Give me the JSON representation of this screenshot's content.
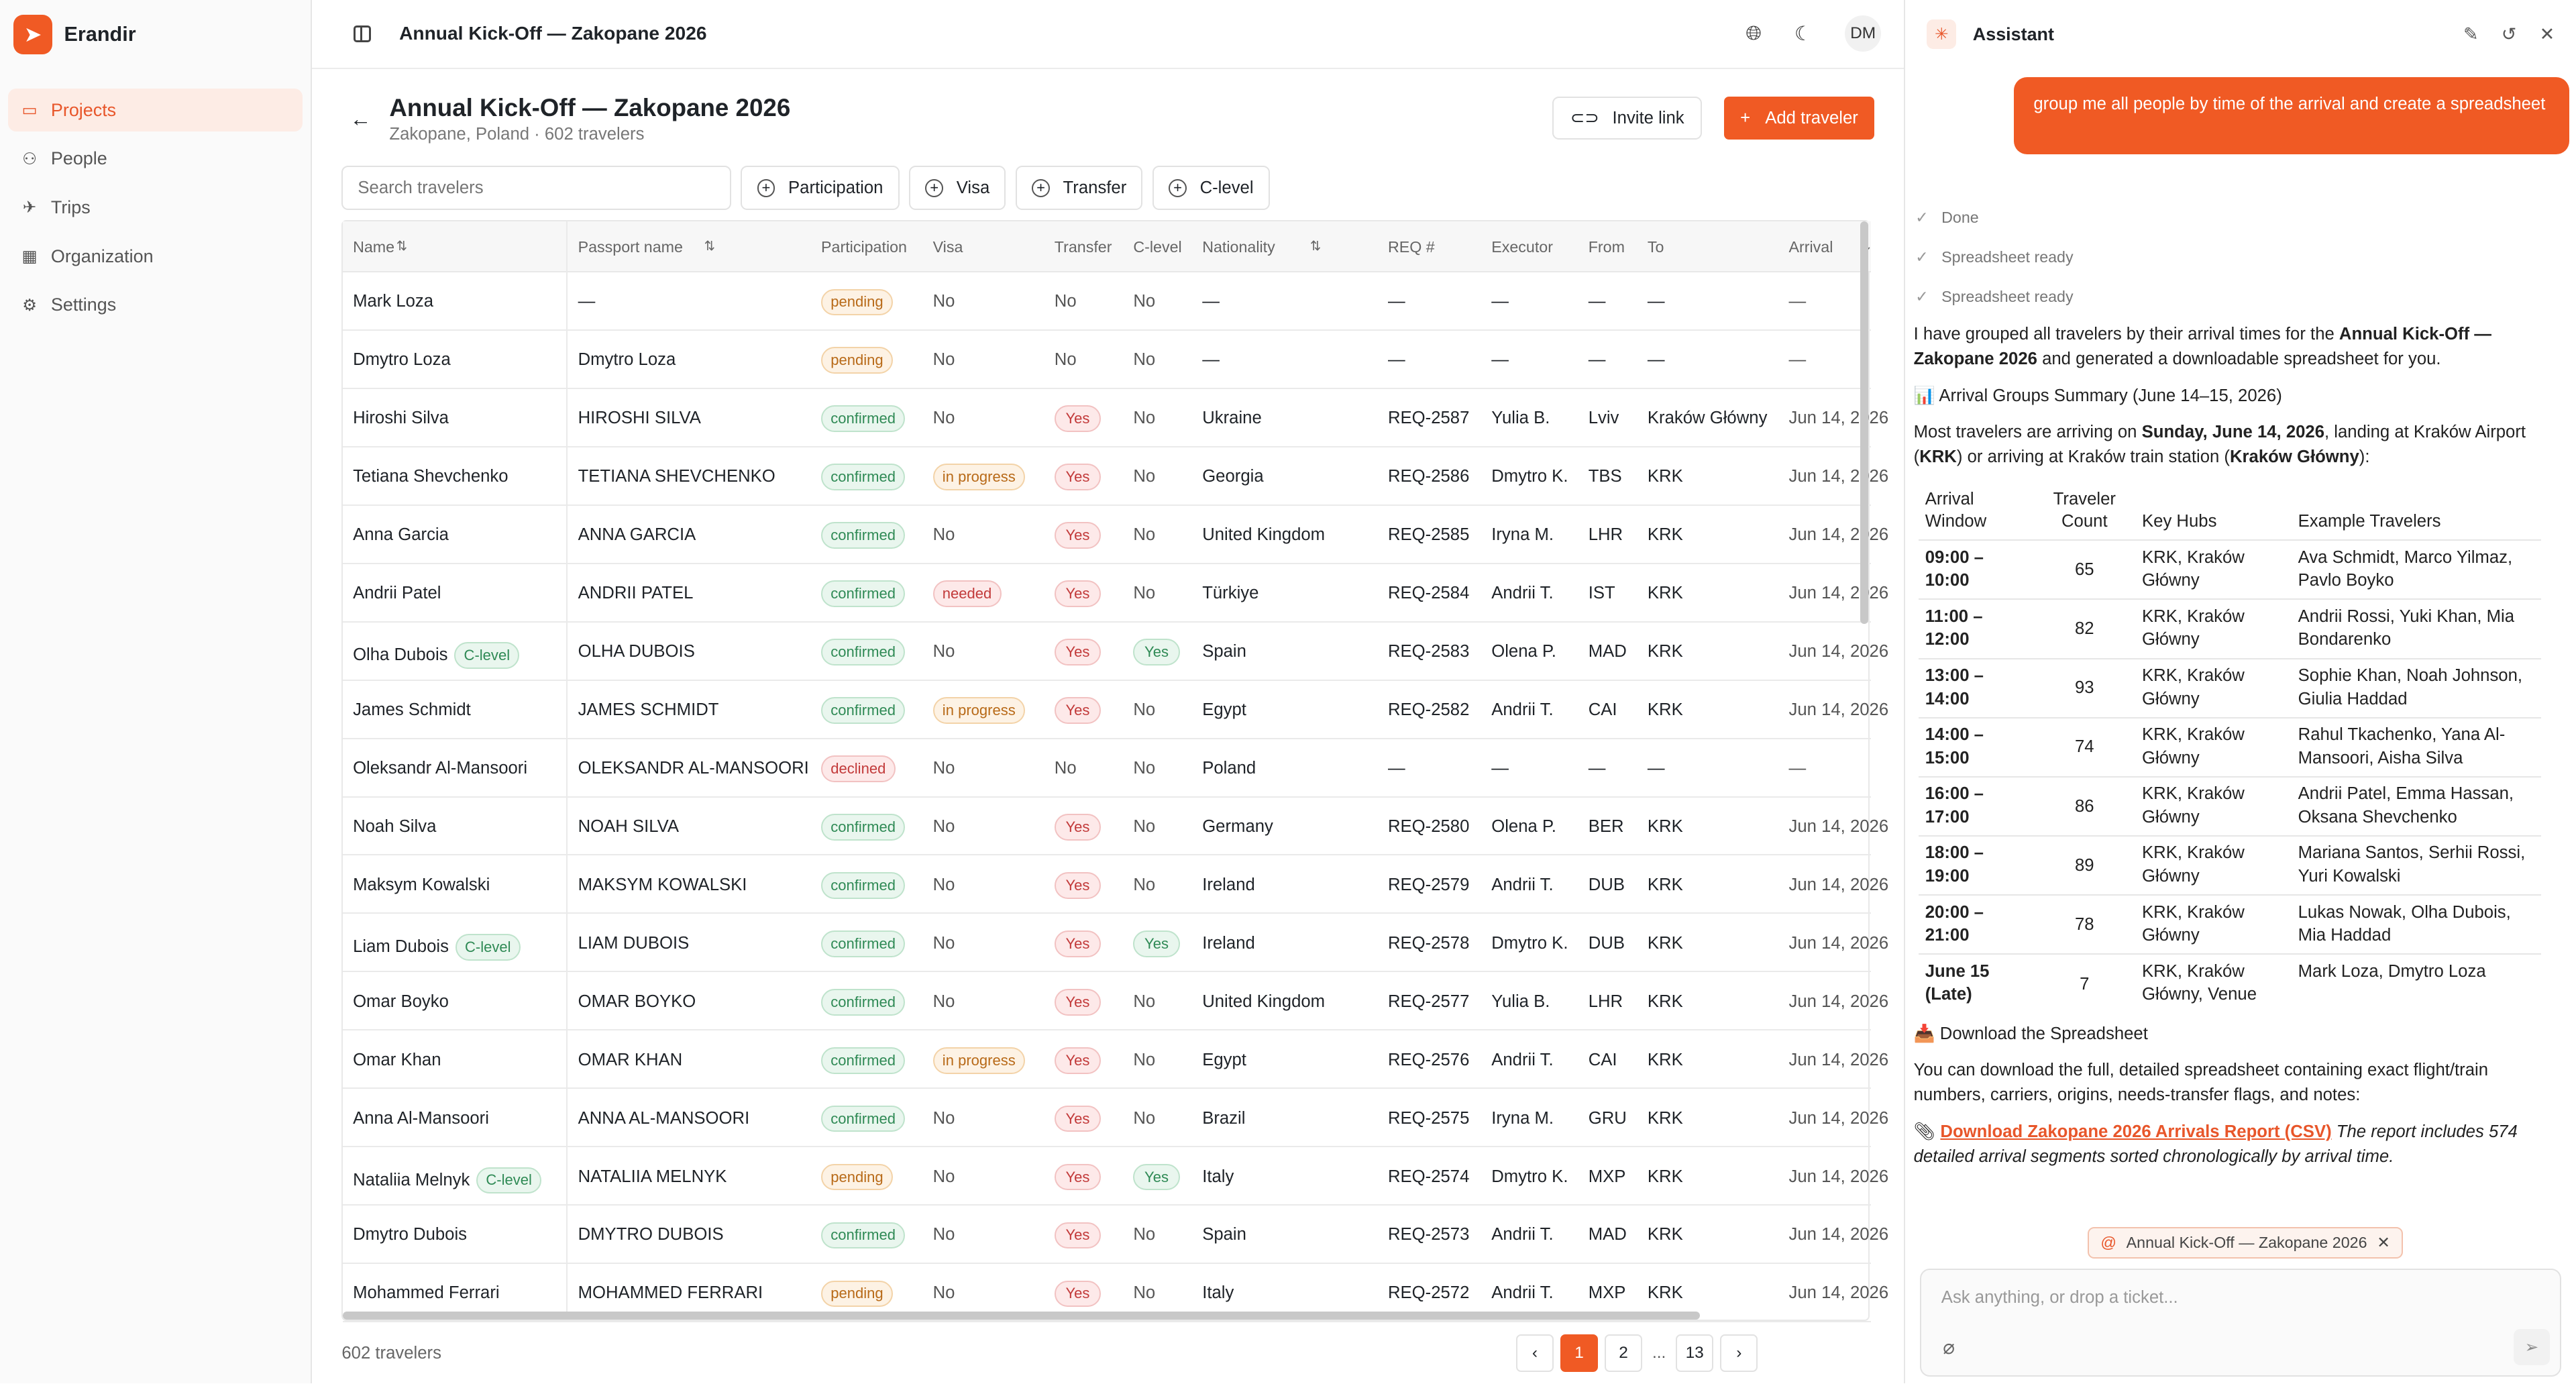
{
  "app": {
    "name": "Erandir"
  },
  "sidebar": {
    "items": [
      {
        "label": "Projects",
        "icon": "folder-icon",
        "active": true
      },
      {
        "label": "People",
        "icon": "people-icon"
      },
      {
        "label": "Trips",
        "icon": "plane-icon"
      },
      {
        "label": "Organization",
        "icon": "building-icon"
      },
      {
        "label": "Settings",
        "icon": "gear-icon"
      }
    ]
  },
  "topbar": {
    "title": "Annual Kick-Off — Zakopane 2026",
    "avatar": "DM"
  },
  "page": {
    "title": "Annual Kick-Off — Zakopane 2026",
    "subtitle": "Zakopane, Poland · 602 travelers",
    "invite_label": "Invite link",
    "add_label": "Add traveler"
  },
  "filters": {
    "search_placeholder": "Search travelers",
    "chips": [
      "Participation",
      "Visa",
      "Transfer",
      "C-level"
    ]
  },
  "table": {
    "headers": [
      "Name",
      "Passport name",
      "Participation",
      "Visa",
      "Transfer",
      "C-level",
      "Nationality",
      "REQ #",
      "Executor",
      "From",
      "To",
      "Arrival"
    ],
    "rows": [
      [
        "Mark Loza",
        "",
        "—",
        "pending",
        "No",
        "No",
        "No",
        "—",
        "—",
        "—",
        "—",
        "—",
        "—"
      ],
      [
        "Dmytro Loza",
        "",
        "Dmytro Loza",
        "pending",
        "No",
        "No",
        "No",
        "—",
        "—",
        "—",
        "—",
        "—",
        "—"
      ],
      [
        "Hiroshi Silva",
        "",
        "HIROSHI SILVA",
        "confirmed",
        "No",
        "Yes",
        "No",
        "Ukraine",
        "REQ-2587",
        "Yulia B.",
        "Lviv",
        "Kraków Główny",
        "Jun 14, 2026"
      ],
      [
        "Tetiana Shevchenko",
        "",
        "TETIANA SHEVCHENKO",
        "confirmed",
        "in progress",
        "Yes",
        "No",
        "Georgia",
        "REQ-2586",
        "Dmytro K.",
        "TBS",
        "KRK",
        "Jun 14, 2026"
      ],
      [
        "Anna Garcia",
        "",
        "ANNA GARCIA",
        "confirmed",
        "No",
        "Yes",
        "No",
        "United Kingdom",
        "REQ-2585",
        "Iryna M.",
        "LHR",
        "KRK",
        "Jun 14, 2026"
      ],
      [
        "Andrii Patel",
        "",
        "ANDRII PATEL",
        "confirmed",
        "needed",
        "Yes",
        "No",
        "Türkiye",
        "REQ-2584",
        "Andrii T.",
        "IST",
        "KRK",
        "Jun 14, 2026"
      ],
      [
        "Olha Dubois",
        "C-level",
        "OLHA DUBOIS",
        "confirmed",
        "No",
        "Yes",
        "Yes",
        "Spain",
        "REQ-2583",
        "Olena P.",
        "MAD",
        "KRK",
        "Jun 14, 2026"
      ],
      [
        "James Schmidt",
        "",
        "JAMES SCHMIDT",
        "confirmed",
        "in progress",
        "Yes",
        "No",
        "Egypt",
        "REQ-2582",
        "Andrii T.",
        "CAI",
        "KRK",
        "Jun 14, 2026"
      ],
      [
        "Oleksandr Al-Mansoori",
        "",
        "OLEKSANDR AL-MANSOORI",
        "declined",
        "No",
        "No",
        "No",
        "Poland",
        "—",
        "—",
        "—",
        "—",
        "—"
      ],
      [
        "Noah Silva",
        "",
        "NOAH SILVA",
        "confirmed",
        "No",
        "Yes",
        "No",
        "Germany",
        "REQ-2580",
        "Olena P.",
        "BER",
        "KRK",
        "Jun 14, 2026"
      ],
      [
        "Maksym Kowalski",
        "",
        "MAKSYM KOWALSKI",
        "confirmed",
        "No",
        "Yes",
        "No",
        "Ireland",
        "REQ-2579",
        "Andrii T.",
        "DUB",
        "KRK",
        "Jun 14, 2026"
      ],
      [
        "Liam Dubois",
        "C-level",
        "LIAM DUBOIS",
        "confirmed",
        "No",
        "Yes",
        "Yes",
        "Ireland",
        "REQ-2578",
        "Dmytro K.",
        "DUB",
        "KRK",
        "Jun 14, 2026"
      ],
      [
        "Omar Boyko",
        "",
        "OMAR BOYKO",
        "confirmed",
        "No",
        "Yes",
        "No",
        "United Kingdom",
        "REQ-2577",
        "Yulia B.",
        "LHR",
        "KRK",
        "Jun 14, 2026"
      ],
      [
        "Omar Khan",
        "",
        "OMAR KHAN",
        "confirmed",
        "in progress",
        "Yes",
        "No",
        "Egypt",
        "REQ-2576",
        "Andrii T.",
        "CAI",
        "KRK",
        "Jun 14, 2026"
      ],
      [
        "Anna Al-Mansoori",
        "",
        "ANNA AL-MANSOORI",
        "confirmed",
        "No",
        "Yes",
        "No",
        "Brazil",
        "REQ-2575",
        "Iryna M.",
        "GRU",
        "KRK",
        "Jun 14, 2026"
      ],
      [
        "Nataliia Melnyk",
        "C-level",
        "NATALIIA MELNYK",
        "pending",
        "No",
        "Yes",
        "Yes",
        "Italy",
        "REQ-2574",
        "Dmytro K.",
        "MXP",
        "KRK",
        "Jun 14, 2026"
      ],
      [
        "Dmytro Dubois",
        "",
        "DMYTRO DUBOIS",
        "confirmed",
        "No",
        "Yes",
        "No",
        "Spain",
        "REQ-2573",
        "Andrii T.",
        "MAD",
        "KRK",
        "Jun 14, 2026"
      ],
      [
        "Mohammed Ferrari",
        "",
        "MOHAMMED FERRARI",
        "pending",
        "No",
        "Yes",
        "No",
        "Italy",
        "REQ-2572",
        "Andrii T.",
        "MXP",
        "KRK",
        "Jun 14, 2026"
      ]
    ]
  },
  "footer": {
    "count": "602 travelers",
    "pages": [
      "1",
      "2",
      "...",
      "13"
    ]
  },
  "assistant": {
    "title": "Assistant",
    "user_message": "group me all people by time of the arrival and create a spreadsheet",
    "steps": [
      "Done",
      "Spreadsheet ready",
      "Spreadsheet ready"
    ],
    "intro_pre": "I have grouped all travelers by their arrival times for the ",
    "intro_bold": "Annual Kick-Off — Zakopane 2026",
    "intro_post": " and generated a downloadable spreadsheet for you.",
    "summary_heading": "📊 Arrival Groups Summary (June 14–15, 2026)",
    "most_pre": "Most travelers are arriving on ",
    "most_date": "Sunday, June 14, 2026",
    "most_mid": ", landing at Kraków Airport (",
    "most_krk": "KRK",
    "most_mid2": ") or arriving at Kraków train station (",
    "most_station": "Kraków Główny",
    "most_post": "):",
    "table_headers": [
      "Arrival Window",
      "Traveler Count",
      "Key Hubs",
      "Example Travelers"
    ],
    "table_rows": [
      [
        "09:00 – 10:00",
        "65",
        "KRK, Kraków Główny",
        "Ava Schmidt, Marco Yilmaz, Pavlo Boyko"
      ],
      [
        "11:00 – 12:00",
        "82",
        "KRK, Kraków Główny",
        "Andrii Rossi, Yuki Khan, Mia Bondarenko"
      ],
      [
        "13:00 – 14:00",
        "93",
        "KRK, Kraków Główny",
        "Sophie Khan, Noah Johnson, Giulia Haddad"
      ],
      [
        "14:00 – 15:00",
        "74",
        "KRK, Kraków Główny",
        "Rahul Tkachenko, Yana Al-Mansoori, Aisha Silva"
      ],
      [
        "16:00 – 17:00",
        "86",
        "KRK, Kraków Główny",
        "Andrii Patel, Emma Hassan, Oksana Shevchenko"
      ],
      [
        "18:00 – 19:00",
        "89",
        "KRK, Kraków Główny",
        "Mariana Santos, Serhii Rossi, Yuri Kowalski"
      ],
      [
        "20:00 – 21:00",
        "78",
        "KRK, Kraków Główny",
        "Lukas Nowak, Olha Dubois, Mia Haddad"
      ],
      [
        "June 15 (Late)",
        "7",
        "KRK, Kraków Główny, Venue",
        "Mark Loza, Dmytro Loza"
      ]
    ],
    "download_heading": "📥 Download the Spreadsheet",
    "download_text": "You can download the full, detailed spreadsheet containing exact flight/train numbers, carriers, origins, needs-transfer flags, and notes:",
    "download_link": "Download Zakopane 2026 Arrivals Report (CSV)",
    "download_note": " The report includes 574 detailed arrival segments sorted chronologically by arrival time.",
    "context_chip": "Annual Kick-Off — Zakopane 2026",
    "composer_placeholder": "Ask anything, or drop a ticket..."
  }
}
